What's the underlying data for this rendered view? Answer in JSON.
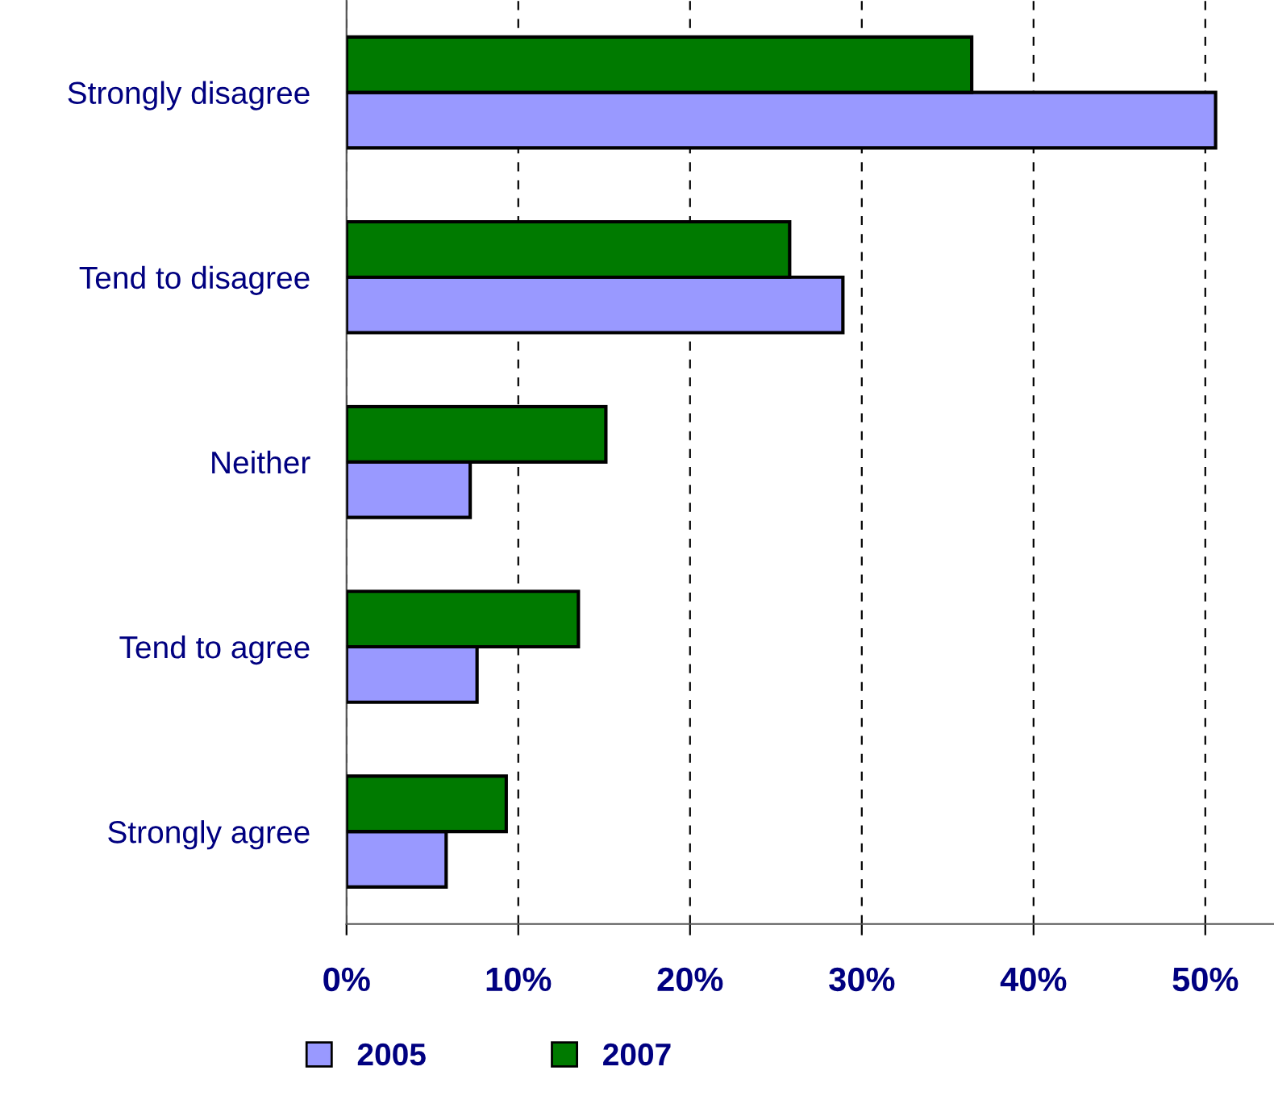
{
  "chart_data": {
    "type": "bar",
    "orientation": "horizontal",
    "categories": [
      "Strongly disagree",
      "Tend to disagree",
      "Neither",
      "Tend to agree",
      "Strongly agree"
    ],
    "series": [
      {
        "name": "2005",
        "color": "#9999ff",
        "values": [
          50.6,
          28.9,
          7.2,
          7.6,
          5.8
        ]
      },
      {
        "name": "2007",
        "color": "#007a00",
        "values": [
          36.4,
          25.8,
          15.1,
          13.5,
          9.3
        ]
      }
    ],
    "xlim": [
      0,
      54
    ],
    "xticks": [
      {
        "value": 0,
        "label": "0%"
      },
      {
        "value": 10,
        "label": "10%"
      },
      {
        "value": 20,
        "label": "20%"
      },
      {
        "value": 30,
        "label": "30%"
      },
      {
        "value": 40,
        "label": "40%"
      },
      {
        "value": 50,
        "label": "50%"
      }
    ],
    "grid": "x",
    "line_style": "dashed",
    "legend": "bottom"
  }
}
